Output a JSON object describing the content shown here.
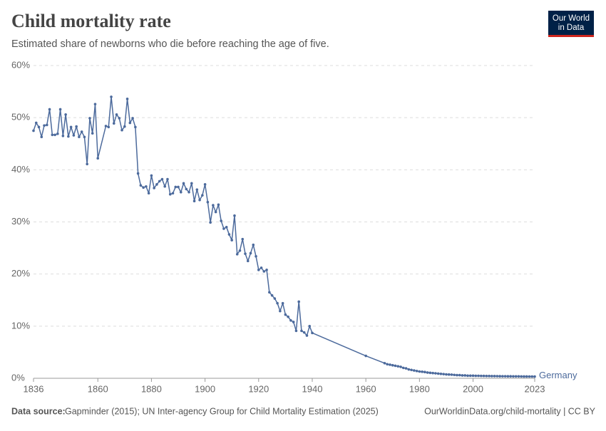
{
  "chart_data": {
    "type": "line",
    "title": "Child mortality rate",
    "subtitle": "Estimated share of newborns who die before reaching the age of five.",
    "source_label": "Data source:",
    "source": "Gapminder (2015); UN Inter-agency Group for Child Mortality Estimation (2025)",
    "url": "OurWorldinData.org/child-mortality | CC BY",
    "logo": [
      "Our World",
      "in Data"
    ],
    "xlim": [
      1836,
      2023
    ],
    "xticks": [
      1836,
      1860,
      1880,
      1900,
      1920,
      1940,
      1960,
      1980,
      2000,
      2023
    ],
    "ylim": [
      0,
      60
    ],
    "yticks": [
      {
        "value": 0,
        "label": "0%"
      },
      {
        "value": 10,
        "label": "10%"
      },
      {
        "value": 20,
        "label": "20%"
      },
      {
        "value": 30,
        "label": "30%"
      },
      {
        "value": 40,
        "label": "40%"
      },
      {
        "value": 50,
        "label": "50%"
      },
      {
        "value": 60,
        "label": "60%"
      }
    ],
    "grid": true,
    "x": [
      1836,
      1837,
      1838,
      1839,
      1840,
      1841,
      1842,
      1843,
      1844,
      1845,
      1846,
      1847,
      1848,
      1849,
      1850,
      1851,
      1852,
      1853,
      1854,
      1855,
      1856,
      1857,
      1858,
      1859,
      1860,
      1863,
      1864,
      1865,
      1866,
      1867,
      1868,
      1869,
      1870,
      1871,
      1872,
      1873,
      1874,
      1875,
      1876,
      1877,
      1878,
      1879,
      1880,
      1881,
      1882,
      1883,
      1884,
      1885,
      1886,
      1887,
      1888,
      1889,
      1890,
      1891,
      1892,
      1893,
      1894,
      1895,
      1896,
      1897,
      1898,
      1899,
      1900,
      1901,
      1902,
      1903,
      1904,
      1905,
      1906,
      1907,
      1908,
      1909,
      1910,
      1911,
      1912,
      1913,
      1914,
      1915,
      1916,
      1917,
      1918,
      1919,
      1920,
      1921,
      1922,
      1923,
      1924,
      1925,
      1926,
      1927,
      1928,
      1929,
      1930,
      1931,
      1932,
      1933,
      1934,
      1935,
      1936,
      1937,
      1938,
      1939,
      1940,
      1960,
      1967,
      1968,
      1969,
      1970,
      1971,
      1972,
      1973,
      1974,
      1975,
      1976,
      1977,
      1978,
      1979,
      1980,
      1981,
      1982,
      1983,
      1984,
      1985,
      1986,
      1987,
      1988,
      1989,
      1990,
      1991,
      1992,
      1993,
      1994,
      1995,
      1996,
      1997,
      1998,
      1999,
      2000,
      2001,
      2002,
      2003,
      2004,
      2005,
      2006,
      2007,
      2008,
      2009,
      2010,
      2011,
      2012,
      2013,
      2014,
      2015,
      2016,
      2017,
      2018,
      2019,
      2020,
      2021,
      2022,
      2023
    ],
    "series": [
      {
        "name": "Germany",
        "color": "#4c6a9c",
        "values": [
          47.5,
          49.0,
          48.2,
          46.3,
          48.5,
          48.6,
          51.6,
          46.7,
          46.7,
          46.9,
          51.6,
          46.5,
          50.6,
          46.4,
          48.2,
          46.6,
          48.3,
          46.3,
          47.3,
          46.3,
          41.1,
          49.9,
          47.0,
          52.6,
          42.2,
          48.4,
          48.2,
          54.0,
          48.9,
          50.6,
          49.9,
          47.6,
          48.3,
          53.6,
          49.0,
          49.9,
          48.2,
          39.3,
          37.0,
          36.6,
          36.8,
          35.5,
          38.9,
          36.5,
          37.2,
          37.8,
          38.2,
          36.8,
          38.2,
          35.3,
          35.5,
          36.7,
          36.7,
          35.7,
          37.4,
          36.3,
          35.7,
          37.4,
          34.0,
          36.2,
          34.2,
          35.1,
          37.2,
          33.8,
          29.9,
          33.2,
          31.9,
          33.3,
          30.2,
          28.7,
          29.0,
          27.6,
          26.5,
          31.2,
          23.8,
          24.5,
          26.7,
          23.9,
          22.5,
          24.0,
          25.6,
          23.4,
          20.8,
          21.2,
          20.5,
          20.8,
          16.5,
          15.9,
          15.3,
          14.4,
          12.9,
          14.4,
          12.2,
          11.8,
          11.1,
          10.8,
          9.1,
          14.7,
          9.1,
          8.8,
          8.2,
          10.0,
          8.7,
          4.3,
          2.9,
          2.7,
          2.6,
          2.5,
          2.4,
          2.3,
          2.2,
          2.0,
          1.9,
          1.7,
          1.6,
          1.5,
          1.4,
          1.3,
          1.25,
          1.2,
          1.1,
          1.05,
          1.0,
          0.95,
          0.9,
          0.85,
          0.8,
          0.75,
          0.72,
          0.7,
          0.65,
          0.6,
          0.6,
          0.55,
          0.55,
          0.5,
          0.5,
          0.5,
          0.48,
          0.47,
          0.46,
          0.45,
          0.44,
          0.43,
          0.42,
          0.42,
          0.41,
          0.4,
          0.39,
          0.39,
          0.38,
          0.38,
          0.37,
          0.37,
          0.37,
          0.36,
          0.35,
          0.35,
          0.34,
          0.34,
          0.33
        ]
      }
    ]
  }
}
